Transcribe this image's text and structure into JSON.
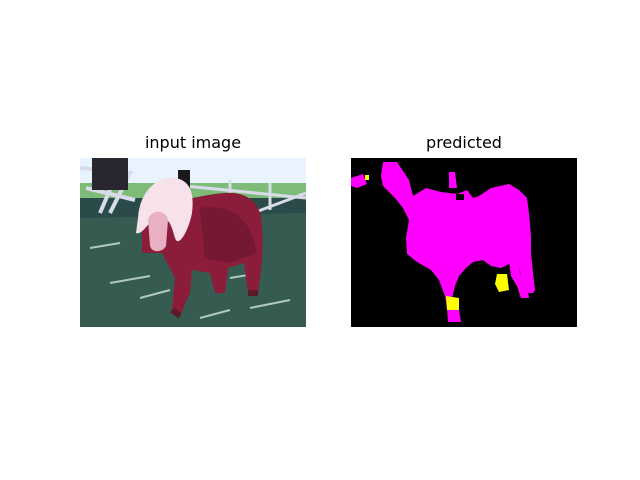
{
  "figure": {
    "left_title": "input image",
    "right_title": "predicted"
  },
  "panels": {
    "input": {
      "subject": "pony",
      "colors": {
        "sky": "#e9f3ff",
        "grass_light": "#6fa86a",
        "grass_dark": "#1f3a39",
        "pony_body": "#8b1c3a",
        "pony_shadow": "#4c0f1f",
        "mane": "#f7e1ea",
        "fence": "#d9dbe8",
        "legs": "#5b1a28"
      }
    },
    "predicted": {
      "background_color": "#000000",
      "mask_color": "#ff00ff",
      "secondary_color": "#ffff00"
    }
  }
}
